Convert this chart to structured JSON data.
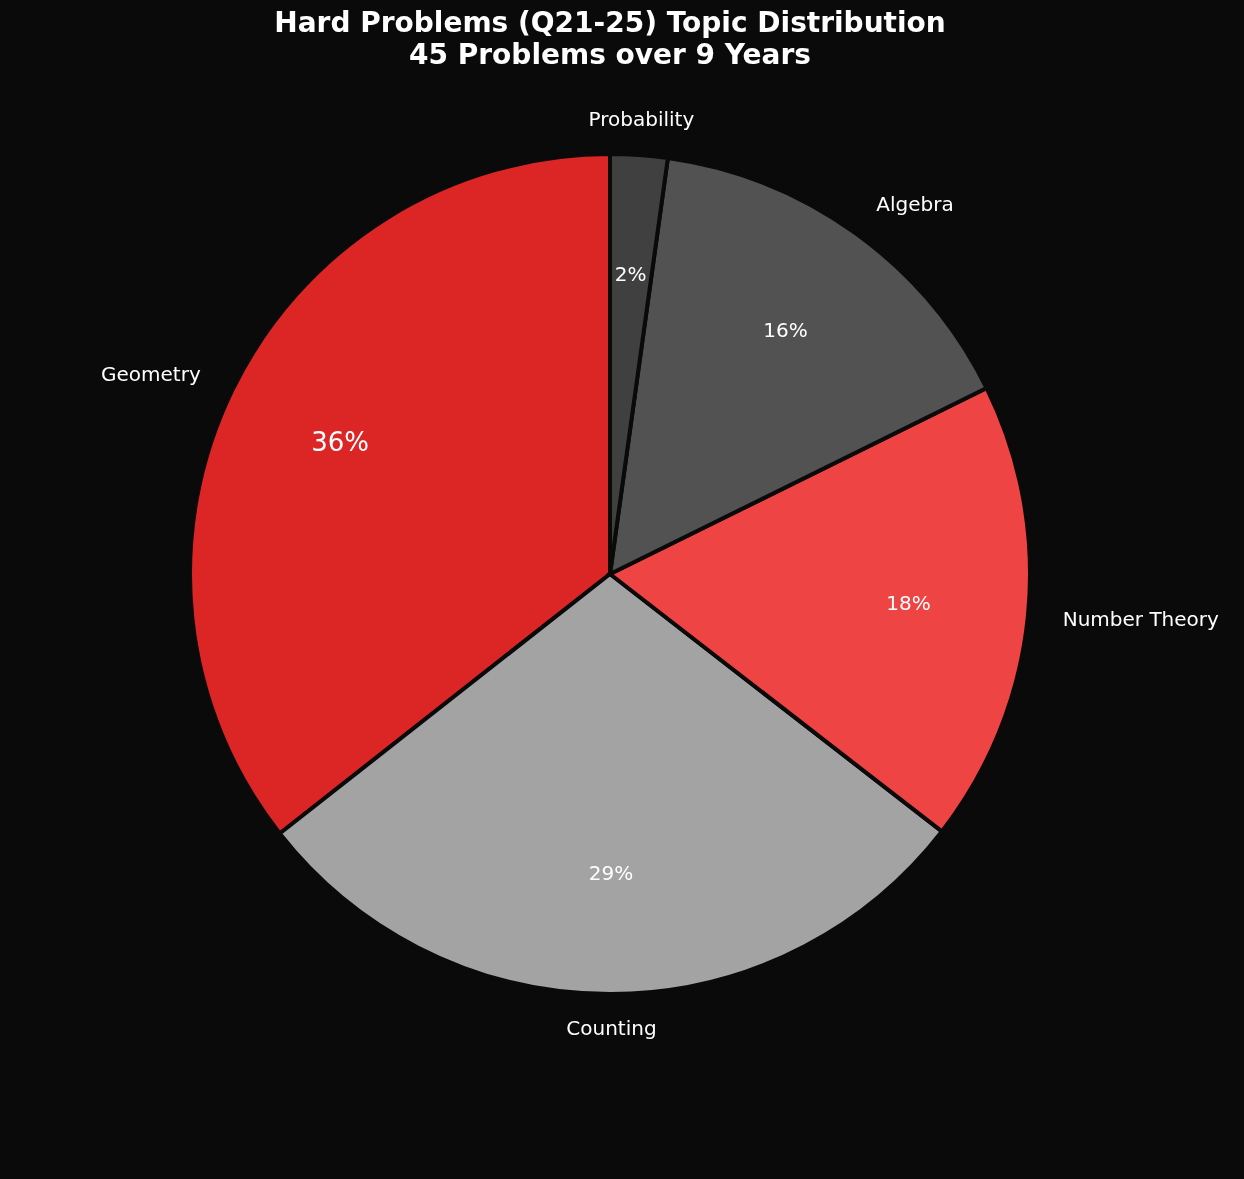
{
  "chart_data": {
    "type": "pie",
    "title": "Hard Problems (Q21-25) Topic Distribution",
    "subtitle": "45 Problems over 9 Years",
    "categories": [
      "Geometry",
      "Counting",
      "Number Theory",
      "Algebra",
      "Probability"
    ],
    "values": [
      35.6,
      28.9,
      17.8,
      15.5,
      2.2
    ],
    "value_labels": [
      "36%",
      "29%",
      "18%",
      "16%",
      "2%"
    ],
    "colors": [
      "#dc2626",
      "#a3a3a3",
      "#ef4444",
      "#525252",
      "#404040"
    ],
    "legend": false
  }
}
